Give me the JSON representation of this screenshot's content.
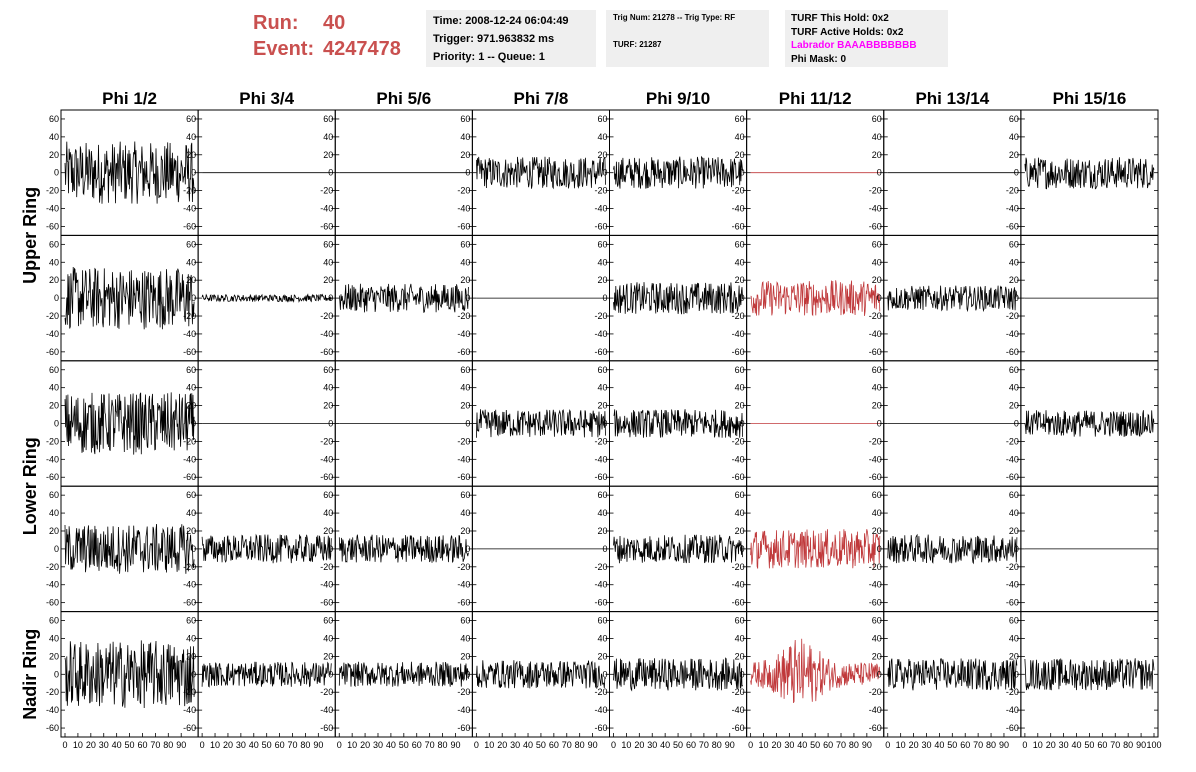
{
  "header": {
    "run_label": "Run:",
    "run_value": "40",
    "event_label": "Event:",
    "event_value": "4247478",
    "accent_color": "#c9504f"
  },
  "info_box_1": {
    "time": "Time: 2008-12-24 06:04:49",
    "trigger": "Trigger: 971.963832 ms",
    "priority": "Priority: 1 -- Queue: 1"
  },
  "info_box_2": {
    "trig": "Trig Num: 21278 -- Trig Type: RF",
    "turf": "TURF: 21287"
  },
  "info_box_3": {
    "this_hold": "TURF This Hold: 0x2",
    "active_holds": "TURF Active Holds: 0x2",
    "labrador": "Labrador BAAABBBBBBB",
    "phi_mask": "Phi Mask: 0"
  },
  "chart_data": {
    "type": "line",
    "columns": [
      "Phi 1/2",
      "Phi 3/4",
      "Phi 5/6",
      "Phi 7/8",
      "Phi 9/10",
      "Phi 11/12",
      "Phi 13/14",
      "Phi 15/16"
    ],
    "ring_labels": [
      "Upper Ring",
      "Lower Ring",
      "Nadir Ring"
    ],
    "ylim": [
      -70,
      70
    ],
    "xlim": [
      0,
      100
    ],
    "yticks": [
      "60",
      "40",
      "20",
      "0",
      "-20",
      "-40",
      "-60"
    ],
    "xticks": [
      "0",
      "10",
      "20",
      "30",
      "40",
      "50",
      "60",
      "70",
      "80",
      "90",
      "100"
    ],
    "trace_color": "#000000",
    "highlight_color": "#c0393b",
    "panels": [
      [
        {
          "amp": 35,
          "red": false
        },
        {
          "amp": 0,
          "red": false
        },
        {
          "amp": 0,
          "red": false
        },
        {
          "amp": 18,
          "red": false
        },
        {
          "amp": 18,
          "red": false
        },
        {
          "amp": 0,
          "red": true
        },
        {
          "amp": 0,
          "red": false
        },
        {
          "amp": 18,
          "red": false
        }
      ],
      [
        {
          "amp": 35,
          "red": false
        },
        {
          "amp": 4,
          "red": false
        },
        {
          "amp": 16,
          "red": false
        },
        {
          "amp": 0,
          "red": false
        },
        {
          "amp": 18,
          "red": false
        },
        {
          "amp": 20,
          "red": true
        },
        {
          "amp": 14,
          "red": false
        },
        {
          "amp": 0,
          "red": false
        }
      ],
      [
        {
          "amp": 35,
          "red": false
        },
        {
          "amp": 0,
          "red": false
        },
        {
          "amp": 0,
          "red": false
        },
        {
          "amp": 16,
          "red": false
        },
        {
          "amp": 16,
          "red": false
        },
        {
          "amp": 0,
          "red": true
        },
        {
          "amp": 0,
          "red": false
        },
        {
          "amp": 15,
          "red": false
        }
      ],
      [
        {
          "amp": 28,
          "red": false
        },
        {
          "amp": 16,
          "red": false
        },
        {
          "amp": 16,
          "red": false
        },
        {
          "amp": 0,
          "red": false
        },
        {
          "amp": 16,
          "red": false
        },
        {
          "amp": 22,
          "red": true
        },
        {
          "amp": 16,
          "red": false
        },
        {
          "amp": 0,
          "red": false
        }
      ],
      [
        {
          "amp": 38,
          "red": false
        },
        {
          "amp": 14,
          "red": false
        },
        {
          "amp": 14,
          "red": false
        },
        {
          "amp": 16,
          "red": false
        },
        {
          "amp": 18,
          "red": false
        },
        {
          "amp": 30,
          "red": true
        },
        {
          "amp": 18,
          "red": false
        },
        {
          "amp": 18,
          "red": false
        }
      ]
    ]
  }
}
